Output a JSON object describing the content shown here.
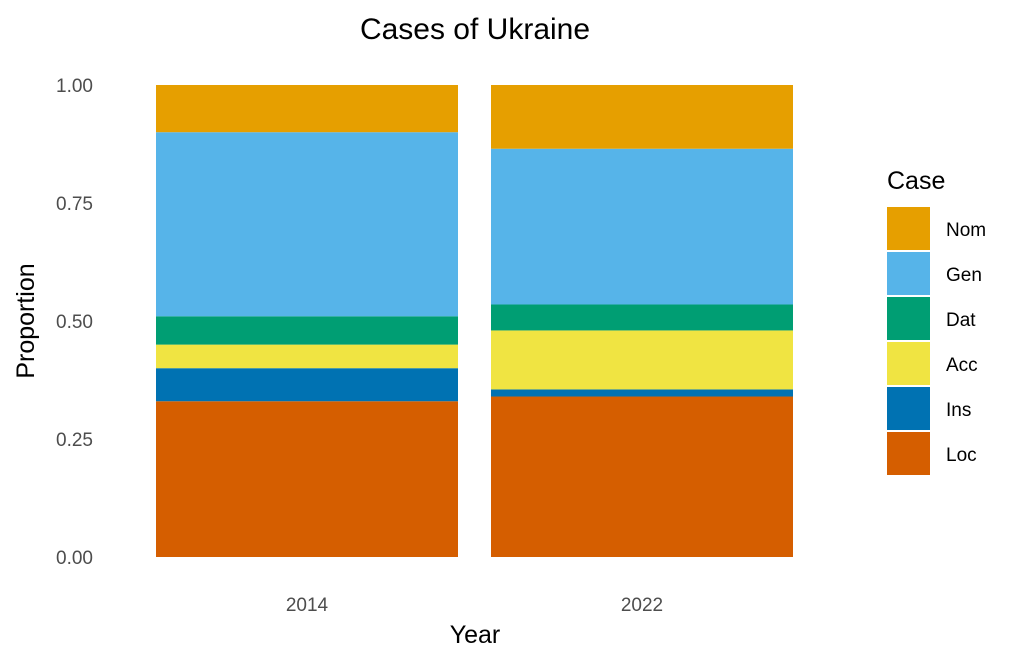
{
  "chart_data": {
    "type": "bar",
    "stacked": true,
    "title": "Cases of Ukraine",
    "xlabel": "Year",
    "ylabel": "Proportion",
    "categories": [
      "2014",
      "2022"
    ],
    "ylim": [
      0,
      1
    ],
    "yticks": [
      "0.00",
      "0.25",
      "0.50",
      "0.75",
      "1.00"
    ],
    "grid": false,
    "legend": {
      "title": "Case",
      "position": "right"
    },
    "series": [
      {
        "name": "Nom",
        "color": "#E69F00",
        "values": [
          0.1,
          0.135
        ]
      },
      {
        "name": "Gen",
        "color": "#56B4E9",
        "values": [
          0.39,
          0.33
        ]
      },
      {
        "name": "Dat",
        "color": "#009E73",
        "values": [
          0.06,
          0.055
        ]
      },
      {
        "name": "Acc",
        "color": "#F0E442",
        "values": [
          0.05,
          0.125
        ]
      },
      {
        "name": "Ins",
        "color": "#0072B2",
        "values": [
          0.07,
          0.015
        ]
      },
      {
        "name": "Loc",
        "color": "#D55E00",
        "values": [
          0.33,
          0.34
        ]
      }
    ]
  }
}
